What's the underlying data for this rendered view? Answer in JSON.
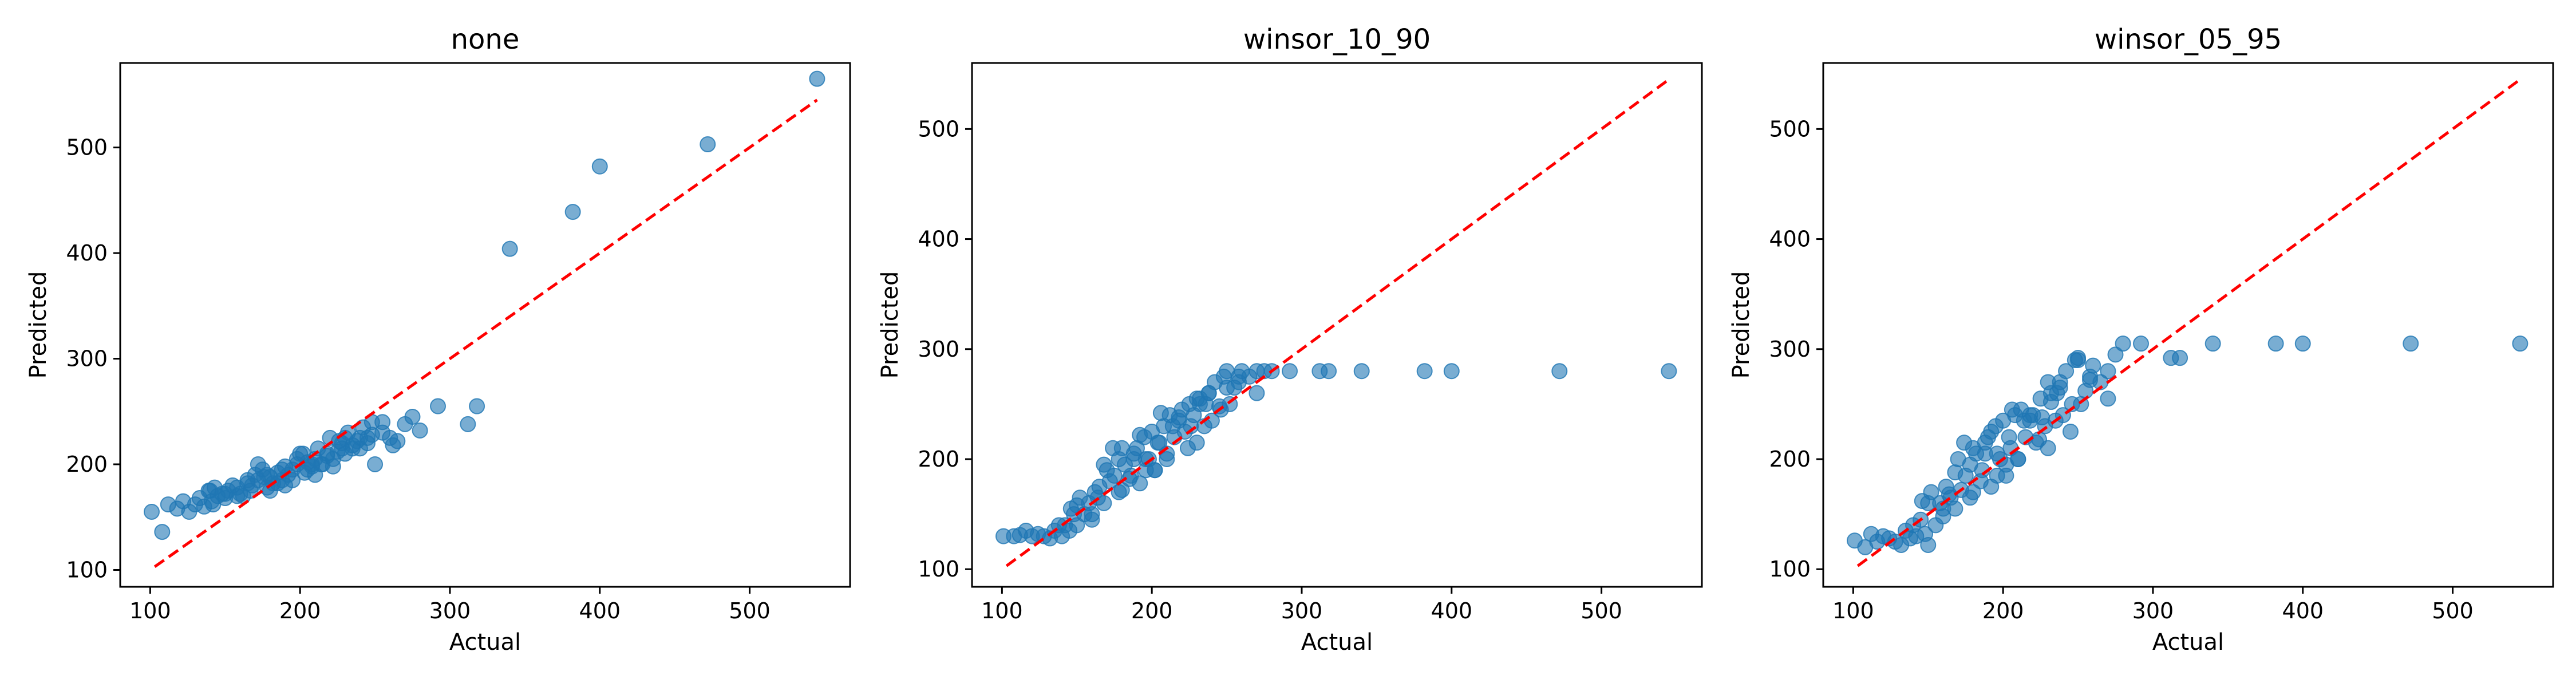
{
  "chart_data": [
    {
      "type": "scatter",
      "title": "none",
      "xlabel": "Actual",
      "ylabel": "Predicted",
      "xlim": [
        80,
        567
      ],
      "ylim": [
        84,
        580
      ],
      "xticks": [
        100,
        200,
        300,
        400,
        500
      ],
      "yticks": [
        100,
        200,
        300,
        400,
        500
      ],
      "grid": false,
      "point_color": "#1f77b4",
      "reference_line": {
        "from": [
          103,
          103
        ],
        "to": [
          545,
          545
        ],
        "color": "#ff0000",
        "style": "dashed"
      },
      "points": {
        "x": [
          101,
          108,
          112,
          118,
          122,
          126,
          130,
          133,
          136,
          139,
          141,
          143,
          145,
          148,
          150,
          152,
          155,
          158,
          160,
          162,
          165,
          167,
          170,
          172,
          175,
          178,
          180,
          182,
          185,
          188,
          190,
          192,
          195,
          198,
          200,
          203,
          205,
          208,
          210,
          212,
          215,
          218,
          220,
          222,
          225,
          228,
          230,
          232,
          235,
          238,
          240,
          242,
          245,
          248,
          250,
          255,
          260,
          265,
          270,
          275,
          280,
          292,
          312,
          318,
          340,
          382,
          400,
          472,
          545,
          142,
          158,
          172,
          185,
          198,
          210,
          222,
          235,
          248,
          165,
          178,
          190,
          205,
          218,
          230,
          245,
          150,
          168,
          180,
          195,
          208,
          226,
          240,
          255,
          262,
          140,
          176,
          188,
          202,
          214,
          228
        ],
        "y": [
          155,
          136,
          162,
          158,
          165,
          155,
          162,
          168,
          160,
          175,
          165,
          178,
          170,
          172,
          168,
          175,
          180,
          178,
          172,
          170,
          182,
          175,
          190,
          185,
          195,
          178,
          188,
          182,
          192,
          185,
          198,
          190,
          195,
          200,
          210,
          192,
          202,
          198,
          205,
          215,
          200,
          208,
          225,
          205,
          212,
          215,
          210,
          230,
          218,
          222,
          215,
          235,
          220,
          228,
          200,
          240,
          225,
          222,
          238,
          245,
          232,
          255,
          238,
          255,
          404,
          439,
          482,
          503,
          565,
          162,
          170,
          200,
          182,
          205,
          190,
          198,
          215,
          240,
          185,
          190,
          180,
          195,
          210,
          225,
          225,
          172,
          180,
          175,
          185,
          200,
          222,
          225,
          230,
          218,
          175,
          188,
          195,
          210,
          200,
          220
        ]
      }
    },
    {
      "type": "scatter",
      "title": "winsor_10_90",
      "xlabel": "Actual",
      "ylabel": "Predicted",
      "xlim": [
        80,
        567
      ],
      "ylim": [
        84,
        560
      ],
      "xticks": [
        100,
        200,
        300,
        400,
        500
      ],
      "yticks": [
        100,
        200,
        300,
        400,
        500
      ],
      "grid": false,
      "point_color": "#1f77b4",
      "reference_line": {
        "from": [
          103,
          103
        ],
        "to": [
          545,
          545
        ],
        "color": "#ff0000",
        "style": "dashed"
      },
      "points": {
        "x": [
          101,
          108,
          112,
          116,
          120,
          124,
          128,
          132,
          135,
          138,
          140,
          142,
          145,
          148,
          150,
          152,
          155,
          158,
          160,
          162,
          165,
          168,
          170,
          172,
          175,
          178,
          180,
          182,
          185,
          188,
          190,
          192,
          195,
          198,
          200,
          202,
          205,
          208,
          210,
          212,
          215,
          218,
          220,
          222,
          225,
          228,
          230,
          232,
          235,
          238,
          240,
          242,
          245,
          248,
          250,
          252,
          255,
          258,
          260,
          265,
          270,
          275,
          280,
          292,
          312,
          318,
          340,
          382,
          400,
          472,
          545,
          146,
          160,
          174,
          186,
          196,
          204,
          214,
          226,
          238,
          250,
          168,
          180,
          192,
          206,
          218,
          232,
          246,
          258,
          270,
          178,
          196,
          210,
          224,
          236,
          150,
          164,
          188,
          202,
          230
        ],
        "y": [
          130,
          130,
          131,
          135,
          130,
          132,
          130,
          128,
          135,
          140,
          130,
          140,
          135,
          150,
          140,
          165,
          150,
          160,
          145,
          170,
          175,
          160,
          190,
          180,
          185,
          200,
          172,
          195,
          182,
          205,
          210,
          178,
          220,
          200,
          225,
          190,
          215,
          230,
          205,
          240,
          220,
          235,
          245,
          225,
          250,
          240,
          215,
          255,
          230,
          260,
          235,
          270,
          248,
          275,
          280,
          250,
          265,
          270,
          280,
          275,
          260,
          280,
          280,
          280,
          280,
          280,
          280,
          280,
          280,
          280,
          280,
          155,
          150,
          210,
          185,
          200,
          215,
          230,
          230,
          260,
          265,
          195,
          210,
          222,
          242,
          238,
          250,
          245,
          275,
          280,
          170,
          190,
          200,
          210,
          250,
          158,
          165,
          200,
          190,
          255
        ]
      }
    },
    {
      "type": "scatter",
      "title": "winsor_05_95",
      "xlabel": "Actual",
      "ylabel": "Predicted",
      "xlim": [
        80,
        567
      ],
      "ylim": [
        84,
        560
      ],
      "xticks": [
        100,
        200,
        300,
        400,
        500
      ],
      "yticks": [
        100,
        200,
        300,
        400,
        500
      ],
      "grid": false,
      "point_color": "#1f77b4",
      "reference_line": {
        "from": [
          103,
          103
        ],
        "to": [
          545,
          545
        ],
        "color": "#ff0000",
        "style": "dashed"
      },
      "points": {
        "x": [
          101,
          108,
          112,
          116,
          120,
          124,
          128,
          132,
          135,
          138,
          140,
          142,
          145,
          148,
          150,
          152,
          155,
          158,
          160,
          162,
          165,
          168,
          170,
          172,
          175,
          178,
          180,
          182,
          185,
          188,
          190,
          192,
          195,
          198,
          200,
          202,
          205,
          208,
          210,
          212,
          215,
          218,
          220,
          222,
          225,
          228,
          230,
          232,
          235,
          238,
          240,
          242,
          245,
          248,
          250,
          252,
          255,
          258,
          260,
          265,
          270,
          275,
          280,
          292,
          312,
          318,
          340,
          382,
          400,
          472,
          545,
          146,
          160,
          174,
          186,
          196,
          204,
          214,
          226,
          238,
          250,
          168,
          180,
          192,
          206,
          218,
          232,
          246,
          258,
          270,
          178,
          196,
          210,
          224,
          236,
          150,
          164,
          188,
          202,
          230
        ],
        "y": [
          126,
          120,
          132,
          125,
          130,
          128,
          125,
          122,
          135,
          128,
          140,
          130,
          145,
          132,
          122,
          170,
          140,
          160,
          148,
          175,
          165,
          155,
          200,
          172,
          185,
          195,
          170,
          205,
          180,
          215,
          220,
          175,
          230,
          200,
          235,
          185,
          210,
          240,
          200,
          245,
          220,
          235,
          240,
          215,
          255,
          230,
          210,
          260,
          235,
          270,
          240,
          280,
          225,
          290,
          290,
          250,
          262,
          275,
          285,
          270,
          255,
          295,
          305,
          305,
          292,
          292,
          305,
          305,
          305,
          305,
          305,
          162,
          155,
          215,
          190,
          205,
          220,
          235,
          238,
          265,
          292,
          188,
          210,
          225,
          245,
          240,
          252,
          250,
          272,
          280,
          165,
          185,
          200,
          218,
          260,
          160,
          168,
          205,
          195,
          270
        ]
      }
    }
  ]
}
